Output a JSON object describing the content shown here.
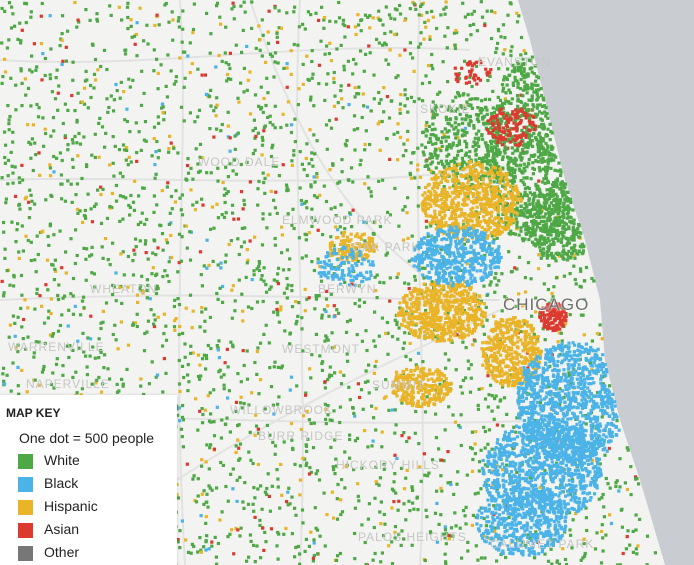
{
  "map": {
    "place_labels": [
      "EVANSTON",
      "SKOKIE",
      "WOOD DALE",
      "ELMWOOD PARK",
      "OAK PARK",
      "WHEATON",
      "BERWYN",
      "WARRENVILLE",
      "WESTMONT",
      "SUMMIT",
      "NAPERVILLE",
      "WILLOWBROOK",
      "BURR RIDGE",
      "HICKORY HILLS",
      "PALOS HEIGHTS",
      "CALUMET PARK"
    ],
    "city_label": "CHICAGO"
  },
  "legend": {
    "title": "MAP KEY",
    "scale": "One dot = 500 people",
    "items": [
      {
        "label": "White",
        "color": "#4ea846"
      },
      {
        "label": "Black",
        "color": "#4bb3e8"
      },
      {
        "label": "Hispanic",
        "color": "#eab428"
      },
      {
        "label": "Asian",
        "color": "#dc3a2e"
      },
      {
        "label": "Other",
        "color": "#777777"
      }
    ]
  },
  "colors": {
    "lake": "#c9cdd1",
    "land": "#f3f3f1",
    "roads": "#e4e4e4"
  }
}
